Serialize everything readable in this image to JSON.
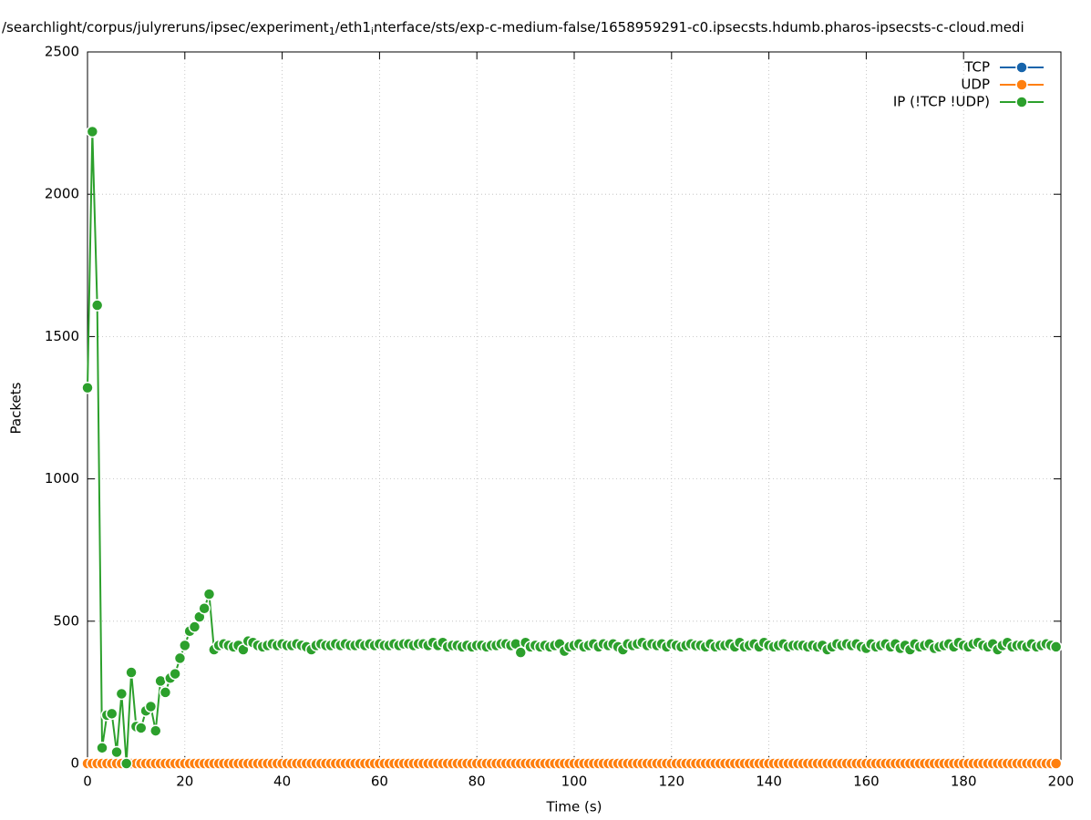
{
  "chart_data": {
    "type": "line",
    "title": [
      "/searchlight/corpus/julyreruns/ipsec/experiment",
      "1",
      "/eth1",
      "i",
      "nterface/sts/exp-c-medium-false/1658959291-c0.ipsecsts.hdumb.pharos-ipsecsts-c-cloud.medi"
    ],
    "x_label": "Time (s)",
    "y_label": "Packets",
    "x": [
      0,
      1,
      2,
      3,
      4,
      5,
      6,
      7,
      8,
      9,
      10,
      11,
      12,
      13,
      14,
      15,
      16,
      17,
      18,
      19,
      20,
      21,
      22,
      23,
      24,
      25,
      26,
      27,
      28,
      29,
      30,
      31,
      32,
      33,
      34,
      35,
      36,
      37,
      38,
      39,
      40,
      41,
      42,
      43,
      44,
      45,
      46,
      47,
      48,
      49,
      50,
      51,
      52,
      53,
      54,
      55,
      56,
      57,
      58,
      59,
      60,
      61,
      62,
      63,
      64,
      65,
      66,
      67,
      68,
      69,
      70,
      71,
      72,
      73,
      74,
      75,
      76,
      77,
      78,
      79,
      80,
      81,
      82,
      83,
      84,
      85,
      86,
      87,
      88,
      89,
      90,
      91,
      92,
      93,
      94,
      95,
      96,
      97,
      98,
      99,
      100,
      101,
      102,
      103,
      104,
      105,
      106,
      107,
      108,
      109,
      110,
      111,
      112,
      113,
      114,
      115,
      116,
      117,
      118,
      119,
      120,
      121,
      122,
      123,
      124,
      125,
      126,
      127,
      128,
      129,
      130,
      131,
      132,
      133,
      134,
      135,
      136,
      137,
      138,
      139,
      140,
      141,
      142,
      143,
      144,
      145,
      146,
      147,
      148,
      149,
      150,
      151,
      152,
      153,
      154,
      155,
      156,
      157,
      158,
      159,
      160,
      161,
      162,
      163,
      164,
      165,
      166,
      167,
      168,
      169,
      170,
      171,
      172,
      173,
      174,
      175,
      176,
      177,
      178,
      179,
      180,
      181,
      182,
      183,
      184,
      185,
      186,
      187,
      188,
      189,
      190,
      191,
      192,
      193,
      194,
      195,
      196,
      197,
      198,
      199
    ],
    "series": [
      {
        "name": "TCP",
        "color": "#1764ab",
        "values": [
          0,
          0,
          0,
          0,
          0,
          0,
          0,
          0,
          0,
          0,
          0,
          0,
          0,
          0,
          0,
          0,
          0,
          0,
          0,
          0,
          0,
          0,
          0,
          0,
          0,
          0,
          0,
          0,
          0,
          0,
          0,
          0,
          0,
          0,
          0,
          0,
          0,
          0,
          0,
          0,
          0,
          0,
          0,
          0,
          0,
          0,
          0,
          0,
          0,
          0,
          0,
          0,
          0,
          0,
          0,
          0,
          0,
          0,
          0,
          0,
          0,
          0,
          0,
          0,
          0,
          0,
          0,
          0,
          0,
          0,
          0,
          0,
          0,
          0,
          0,
          0,
          0,
          0,
          0,
          0,
          0,
          0,
          0,
          0,
          0,
          0,
          0,
          0,
          0,
          0,
          0,
          0,
          0,
          0,
          0,
          0,
          0,
          0,
          0,
          0,
          0,
          0,
          0,
          0,
          0,
          0,
          0,
          0,
          0,
          0,
          0,
          0,
          0,
          0,
          0,
          0,
          0,
          0,
          0,
          0,
          0,
          0,
          0,
          0,
          0,
          0,
          0,
          0,
          0,
          0,
          0,
          0,
          0,
          0,
          0,
          0,
          0,
          0,
          0,
          0,
          0,
          0,
          0,
          0,
          0,
          0,
          0,
          0,
          0,
          0,
          0,
          0,
          0,
          0,
          0,
          0,
          0,
          0,
          0,
          0,
          0,
          0,
          0,
          0,
          0,
          0,
          0,
          0,
          0,
          0,
          0,
          0,
          0,
          0,
          0,
          0,
          0,
          0,
          0,
          0,
          0,
          0,
          0,
          0,
          0,
          0,
          0,
          0,
          0,
          0,
          0,
          0,
          0,
          0,
          0,
          0,
          0,
          0,
          0,
          0
        ]
      },
      {
        "name": "UDP",
        "color": "#ff7f0e",
        "values": [
          0,
          0,
          0,
          0,
          0,
          0,
          0,
          0,
          0,
          0,
          0,
          0,
          0,
          0,
          0,
          0,
          0,
          0,
          0,
          0,
          0,
          0,
          0,
          0,
          0,
          0,
          0,
          0,
          0,
          0,
          0,
          0,
          0,
          0,
          0,
          0,
          0,
          0,
          0,
          0,
          0,
          0,
          0,
          0,
          0,
          0,
          0,
          0,
          0,
          0,
          0,
          0,
          0,
          0,
          0,
          0,
          0,
          0,
          0,
          0,
          0,
          0,
          0,
          0,
          0,
          0,
          0,
          0,
          0,
          0,
          0,
          0,
          0,
          0,
          0,
          0,
          0,
          0,
          0,
          0,
          0,
          0,
          0,
          0,
          0,
          0,
          0,
          0,
          0,
          0,
          0,
          0,
          0,
          0,
          0,
          0,
          0,
          0,
          0,
          0,
          0,
          0,
          0,
          0,
          0,
          0,
          0,
          0,
          0,
          0,
          0,
          0,
          0,
          0,
          0,
          0,
          0,
          0,
          0,
          0,
          0,
          0,
          0,
          0,
          0,
          0,
          0,
          0,
          0,
          0,
          0,
          0,
          0,
          0,
          0,
          0,
          0,
          0,
          0,
          0,
          0,
          0,
          0,
          0,
          0,
          0,
          0,
          0,
          0,
          0,
          0,
          0,
          0,
          0,
          0,
          0,
          0,
          0,
          0,
          0,
          0,
          0,
          0,
          0,
          0,
          0,
          0,
          0,
          0,
          0,
          0,
          0,
          0,
          0,
          0,
          0,
          0,
          0,
          0,
          0,
          0,
          0,
          0,
          0,
          0,
          0,
          0,
          0,
          0,
          0,
          0,
          0,
          0,
          0,
          0,
          0,
          0,
          0,
          0,
          0
        ]
      },
      {
        "name": "IP (!TCP  !UDP)",
        "color": "#2ca02c",
        "values": [
          1320,
          2220,
          1610,
          55,
          170,
          175,
          40,
          245,
          0,
          320,
          130,
          125,
          185,
          200,
          115,
          290,
          250,
          300,
          315,
          370,
          415,
          465,
          480,
          515,
          545,
          595,
          400,
          415,
          420,
          415,
          410,
          415,
          400,
          430,
          425,
          415,
          410,
          415,
          420,
          415,
          420,
          415,
          415,
          420,
          415,
          410,
          400,
          415,
          420,
          415,
          415,
          420,
          415,
          420,
          415,
          415,
          420,
          415,
          420,
          415,
          420,
          415,
          415,
          420,
          415,
          420,
          420,
          415,
          420,
          420,
          415,
          425,
          415,
          425,
          410,
          415,
          415,
          410,
          415,
          410,
          415,
          415,
          410,
          415,
          415,
          420,
          420,
          415,
          420,
          390,
          425,
          410,
          415,
          410,
          415,
          410,
          415,
          420,
          395,
          410,
          415,
          420,
          410,
          415,
          420,
          410,
          420,
          415,
          420,
          410,
          400,
          420,
          415,
          420,
          425,
          415,
          420,
          415,
          420,
          410,
          420,
          415,
          410,
          415,
          420,
          415,
          415,
          410,
          420,
          410,
          415,
          415,
          420,
          410,
          425,
          410,
          415,
          420,
          410,
          425,
          415,
          410,
          415,
          420,
          410,
          415,
          415,
          415,
          410,
          415,
          410,
          415,
          400,
          410,
          420,
          415,
          420,
          415,
          420,
          410,
          405,
          420,
          410,
          415,
          420,
          410,
          420,
          405,
          415,
          400,
          420,
          410,
          415,
          420,
          405,
          410,
          415,
          420,
          410,
          425,
          415,
          410,
          420,
          425,
          415,
          410,
          420,
          400,
          415,
          425,
          410,
          415,
          415,
          410,
          420,
          410,
          415,
          420,
          415,
          410
        ]
      }
    ],
    "xlim": [
      0,
      200
    ],
    "ylim": [
      0,
      2500
    ],
    "xticks": [
      0,
      20,
      40,
      60,
      80,
      100,
      120,
      140,
      160,
      180,
      200
    ],
    "yticks": [
      0,
      500,
      1000,
      1500,
      2000,
      2500
    ],
    "grid": true,
    "legend": "upper right"
  }
}
